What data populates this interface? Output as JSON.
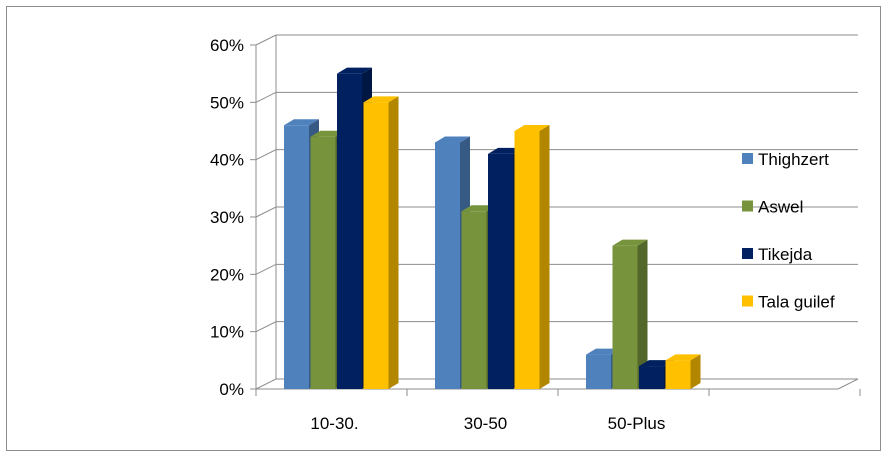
{
  "chart_data": {
    "type": "bar",
    "categories": [
      "10-30.",
      "30-50",
      "50-Plus"
    ],
    "series": [
      {
        "name": "Thighzert",
        "values": [
          46,
          43,
          6
        ]
      },
      {
        "name": "Aswel",
        "values": [
          44,
          31,
          25
        ]
      },
      {
        "name": "Tikejda",
        "values": [
          55,
          41,
          4
        ]
      },
      {
        "name": "Tala guilef",
        "values": [
          50,
          45,
          5
        ]
      }
    ],
    "y_ticks": [
      "0%",
      "10%",
      "20%",
      "30%",
      "40%",
      "50%",
      "60%"
    ],
    "ylim": [
      0,
      60
    ],
    "grid": true,
    "legend_position": "right",
    "colors": {
      "Thighzert": "#4f81bd",
      "Aswel": "#77933c",
      "Tikejda": "#002060",
      "Tala guilef": "#ffc000"
    }
  }
}
